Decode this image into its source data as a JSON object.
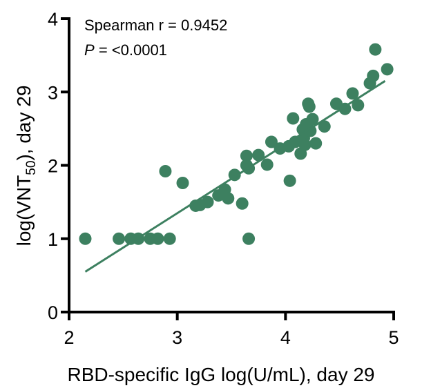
{
  "chart_data": {
    "type": "scatter",
    "x_label": "RBD-specific IgG log(U/mL), day 29",
    "y_label": {
      "pre": "log(VNT",
      "sub": "50",
      "post": "), day 29"
    },
    "annotations": {
      "spearman": "Spearman r =  0.9452",
      "p_symbol": "P",
      "p_value": "= <0.0001"
    },
    "color": "#3d8060",
    "xlim": [
      2,
      5
    ],
    "ylim": [
      0,
      4
    ],
    "xticks": [
      2,
      3,
      4,
      5
    ],
    "yticks": [
      0,
      1,
      2,
      3,
      4
    ],
    "x": [
      2.15,
      2.46,
      2.57,
      2.64,
      2.75,
      2.82,
      2.93,
      2.89,
      3.05,
      3.17,
      3.21,
      3.28,
      3.38,
      3.44,
      3.47,
      3.53,
      3.6,
      3.66,
      3.64,
      3.64,
      3.66,
      3.75,
      3.83,
      3.87,
      3.95,
      4.03,
      4.04,
      4.07,
      4.09,
      4.14,
      4.16,
      4.17,
      4.18,
      4.19,
      4.21,
      4.22,
      4.23,
      4.25,
      4.28,
      4.36,
      4.47,
      4.55,
      4.62,
      4.67,
      4.78,
      4.81,
      4.83,
      4.94
    ],
    "values": [
      1.0,
      1.0,
      1.0,
      1.0,
      1.0,
      1.0,
      1.0,
      1.92,
      1.76,
      1.45,
      1.46,
      1.5,
      1.59,
      1.67,
      1.55,
      1.87,
      1.48,
      1.0,
      2.13,
      2.0,
      1.96,
      2.14,
      2.01,
      2.32,
      2.23,
      2.26,
      1.79,
      2.64,
      2.32,
      2.16,
      2.49,
      2.37,
      2.28,
      2.56,
      2.84,
      2.8,
      2.47,
      2.63,
      2.3,
      2.53,
      2.84,
      2.77,
      2.98,
      2.82,
      3.12,
      3.22,
      3.58,
      3.31
    ],
    "regression": {
      "x": [
        2.15,
        4.92
      ],
      "y": [
        0.55,
        3.15
      ]
    }
  }
}
